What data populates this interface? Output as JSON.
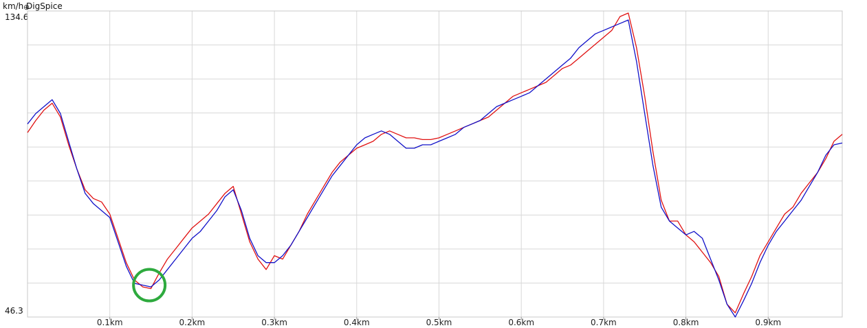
{
  "header": {
    "unit": "km/h",
    "app_name": "DigSpice",
    "y_max_label": "134.6",
    "y_min_label": "46.3"
  },
  "chart_data": {
    "type": "line",
    "ylim": [
      46.3,
      134.6
    ],
    "xlim": [
      0,
      0.99
    ],
    "x_ticks": [
      0.1,
      0.2,
      0.3,
      0.4,
      0.5,
      0.6,
      0.7,
      0.8,
      0.9
    ],
    "x_tick_labels": [
      "0.1km",
      "0.2km",
      "0.3km",
      "0.4km",
      "0.5km",
      "0.6km",
      "0.7km",
      "0.8km",
      "0.9km"
    ],
    "grid": true,
    "colors": {
      "series_1": "#e01010",
      "series_2": "#1010c8",
      "marker": "#2eaa3e",
      "grid": "#d8d8d8"
    },
    "series": [
      {
        "color": "#e01010",
        "x": [
          0,
          0.01,
          0.02,
          0.03,
          0.04,
          0.05,
          0.06,
          0.07,
          0.08,
          0.09,
          0.1,
          0.11,
          0.12,
          0.13,
          0.14,
          0.15,
          0.16,
          0.17,
          0.18,
          0.19,
          0.2,
          0.21,
          0.22,
          0.23,
          0.24,
          0.25,
          0.26,
          0.27,
          0.28,
          0.29,
          0.3,
          0.31,
          0.32,
          0.33,
          0.34,
          0.35,
          0.36,
          0.37,
          0.38,
          0.39,
          0.4,
          0.41,
          0.42,
          0.43,
          0.44,
          0.45,
          0.46,
          0.47,
          0.48,
          0.49,
          0.5,
          0.51,
          0.52,
          0.53,
          0.54,
          0.55,
          0.56,
          0.57,
          0.58,
          0.59,
          0.6,
          0.61,
          0.62,
          0.63,
          0.64,
          0.65,
          0.66,
          0.67,
          0.68,
          0.69,
          0.7,
          0.71,
          0.72,
          0.73,
          0.74,
          0.75,
          0.76,
          0.77,
          0.78,
          0.79,
          0.8,
          0.81,
          0.82,
          0.83,
          0.84,
          0.85,
          0.86,
          0.87,
          0.88,
          0.89,
          0.9,
          0.91,
          0.92,
          0.93,
          0.94,
          0.95,
          0.96,
          0.97,
          0.98,
          0.99
        ],
        "values": [
          99.5,
          103,
          106,
          108,
          104,
          96,
          89,
          83,
          80.5,
          79.5,
          76,
          69,
          62,
          57,
          55,
          54.5,
          59,
          63,
          66,
          69,
          72,
          74,
          76,
          79,
          82,
          84,
          76,
          68,
          63,
          60,
          64,
          63,
          67,
          71,
          76,
          80,
          84,
          88,
          91,
          93,
          95,
          96,
          97,
          99,
          100,
          99,
          98,
          98,
          97.5,
          97.5,
          98,
          99,
          100,
          101,
          102,
          103,
          104,
          106,
          108,
          110,
          111,
          112,
          113,
          114,
          116,
          118,
          119,
          121,
          123,
          125,
          127,
          129,
          133,
          134,
          124,
          110,
          94,
          80,
          74,
          74,
          70,
          68,
          65,
          62,
          58,
          50,
          47.5,
          53,
          58,
          64,
          68,
          72,
          76,
          78,
          82,
          85,
          88,
          92,
          97,
          99
        ]
      },
      {
        "color": "#1010c8",
        "x": [
          0,
          0.01,
          0.02,
          0.03,
          0.04,
          0.05,
          0.06,
          0.07,
          0.08,
          0.09,
          0.1,
          0.11,
          0.12,
          0.13,
          0.14,
          0.15,
          0.16,
          0.17,
          0.18,
          0.19,
          0.2,
          0.21,
          0.22,
          0.23,
          0.24,
          0.25,
          0.26,
          0.27,
          0.28,
          0.29,
          0.3,
          0.31,
          0.32,
          0.33,
          0.34,
          0.35,
          0.36,
          0.37,
          0.38,
          0.39,
          0.4,
          0.41,
          0.42,
          0.43,
          0.44,
          0.45,
          0.46,
          0.47,
          0.48,
          0.49,
          0.5,
          0.51,
          0.52,
          0.53,
          0.54,
          0.55,
          0.56,
          0.57,
          0.58,
          0.59,
          0.6,
          0.61,
          0.62,
          0.63,
          0.64,
          0.65,
          0.66,
          0.67,
          0.68,
          0.69,
          0.7,
          0.71,
          0.72,
          0.73,
          0.74,
          0.75,
          0.76,
          0.77,
          0.78,
          0.79,
          0.8,
          0.81,
          0.82,
          0.83,
          0.84,
          0.85,
          0.86,
          0.87,
          0.88,
          0.89,
          0.9,
          0.91,
          0.92,
          0.93,
          0.94,
          0.95,
          0.96,
          0.97,
          0.98,
          0.99
        ],
        "values": [
          102,
          105,
          107,
          109,
          105,
          97,
          89,
          82,
          79,
          77,
          75,
          68,
          61,
          56,
          55.5,
          55,
          57,
          60,
          63,
          66,
          69,
          71,
          74,
          77,
          81,
          83,
          77,
          69,
          64,
          62,
          62,
          64,
          67,
          71,
          75,
          79,
          83,
          87,
          90,
          93,
          96,
          98,
          99,
          100,
          99,
          97,
          95,
          95,
          96,
          96,
          97,
          98,
          99,
          101,
          102,
          103,
          105,
          107,
          108,
          109,
          110,
          111,
          113,
          115,
          117,
          119,
          121,
          124,
          126,
          128,
          129,
          130,
          131,
          132,
          120,
          105,
          90,
          78,
          74,
          72,
          70,
          71,
          69,
          63,
          57,
          50,
          46.3,
          51,
          56,
          62,
          67,
          71,
          74,
          77,
          80,
          84,
          88,
          93,
          96,
          96.5
        ]
      }
    ],
    "annotations": [
      {
        "shape": "circle",
        "x": 0.148,
        "y": 55.5
      }
    ]
  }
}
